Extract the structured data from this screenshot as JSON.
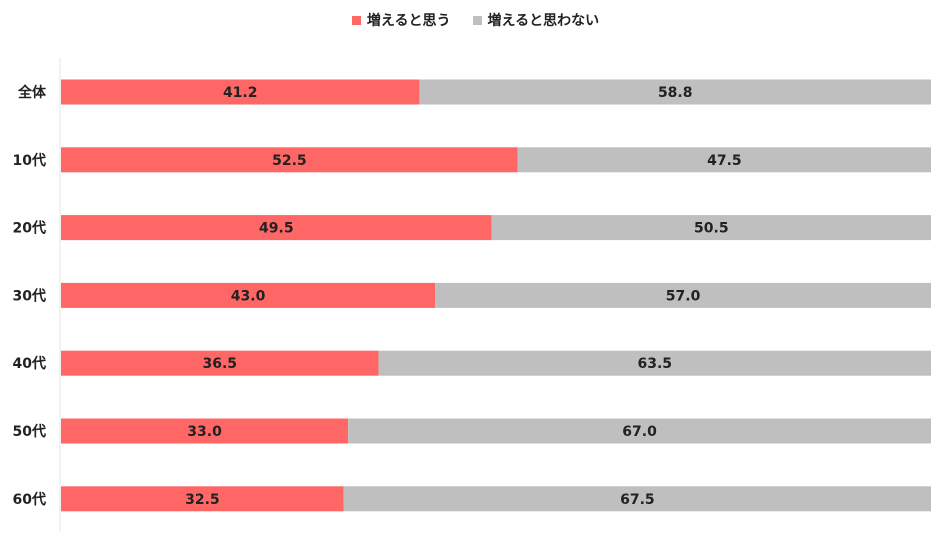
{
  "chart_data": {
    "type": "bar",
    "orientation": "horizontal",
    "stacked": true,
    "percent_stacked": true,
    "categories": [
      "全体",
      "10代",
      "20代",
      "30代",
      "40代",
      "50代",
      "60代"
    ],
    "series": [
      {
        "name": "増えると思う",
        "values": [
          41.2,
          52.5,
          49.5,
          43.0,
          36.5,
          33.0,
          32.5
        ],
        "color": "#ff6666"
      },
      {
        "name": "増えると思わない",
        "values": [
          58.8,
          47.5,
          50.5,
          57.0,
          63.5,
          67.0,
          67.5
        ],
        "color": "#bfbfbf"
      }
    ],
    "value_labels": [
      [
        "41.2",
        "52.5",
        "49.5",
        "43.0",
        "36.5",
        "33.0",
        "32.5"
      ],
      [
        "58.8",
        "47.5",
        "50.5",
        "57.0",
        "63.5",
        "67.0",
        "67.5"
      ]
    ],
    "xlim": [
      0,
      100
    ],
    "grid": false,
    "legend_position": "top"
  }
}
